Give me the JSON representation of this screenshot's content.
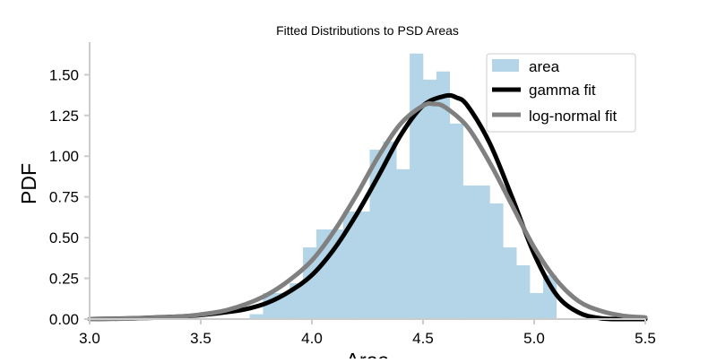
{
  "chart_data": {
    "type": "histogram",
    "title": "Fitted Distributions to PSD Areas",
    "xlabel": "Area",
    "ylabel": "PDF",
    "xlim": [
      3.0,
      5.5
    ],
    "ylim": [
      0.0,
      1.7
    ],
    "xticks": [
      "3.0",
      "3.5",
      "4.0",
      "4.5",
      "5.0",
      "5.5"
    ],
    "yticks": [
      "0.00",
      "0.25",
      "0.50",
      "0.75",
      "1.00",
      "1.25",
      "1.50"
    ],
    "grid": false,
    "legend_position": "top-right",
    "colors": {
      "bars": "#b3d5e7",
      "gamma": "#000000",
      "lognormal": "#808080",
      "axis": "#cccccc"
    },
    "histogram": {
      "name": "area",
      "bin_edges": [
        3.72,
        3.78,
        3.84,
        3.9,
        3.96,
        4.02,
        4.08,
        4.14,
        4.2,
        4.26,
        4.32,
        4.38,
        4.44,
        4.5,
        4.56,
        4.62,
        4.68,
        4.74,
        4.8,
        4.86,
        4.92,
        4.98,
        5.04,
        5.1,
        5.16
      ],
      "densities": [
        0.03,
        0.16,
        0.16,
        0.22,
        0.44,
        0.55,
        0.55,
        0.66,
        0.66,
        1.04,
        1.09,
        0.92,
        1.63,
        1.47,
        1.52,
        1.2,
        0.82,
        0.82,
        0.71,
        0.44,
        0.33,
        0.16,
        0.27,
        0.0
      ]
    },
    "series": [
      {
        "name": "gamma fit",
        "x": [
          3.0,
          3.2,
          3.4,
          3.5,
          3.6,
          3.7,
          3.8,
          3.9,
          4.0,
          4.1,
          4.2,
          4.3,
          4.4,
          4.5,
          4.6,
          4.65,
          4.7,
          4.8,
          4.9,
          5.0,
          5.1,
          5.2,
          5.3,
          5.4,
          5.5
        ],
        "y": [
          0.0,
          0.005,
          0.015,
          0.025,
          0.04,
          0.06,
          0.1,
          0.17,
          0.27,
          0.43,
          0.64,
          0.88,
          1.13,
          1.31,
          1.37,
          1.36,
          1.31,
          1.08,
          0.75,
          0.4,
          0.15,
          0.04,
          0.005,
          0.0,
          0.0
        ]
      },
      {
        "name": "log-normal fit",
        "x": [
          3.0,
          3.2,
          3.4,
          3.5,
          3.6,
          3.7,
          3.8,
          3.9,
          4.0,
          4.1,
          4.2,
          4.3,
          4.4,
          4.5,
          4.55,
          4.6,
          4.7,
          4.8,
          4.9,
          5.0,
          5.1,
          5.2,
          5.3,
          5.4,
          5.5
        ],
        "y": [
          0.0,
          0.004,
          0.015,
          0.028,
          0.05,
          0.09,
          0.15,
          0.24,
          0.36,
          0.54,
          0.76,
          1.0,
          1.2,
          1.31,
          1.32,
          1.3,
          1.18,
          0.96,
          0.7,
          0.44,
          0.24,
          0.11,
          0.05,
          0.02,
          0.01
        ]
      }
    ]
  }
}
